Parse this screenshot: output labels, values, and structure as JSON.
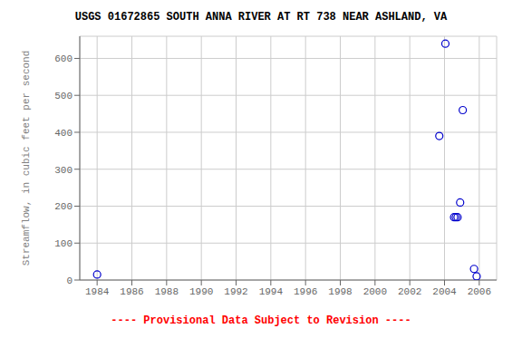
{
  "chart_data": {
    "type": "scatter",
    "title": "USGS 01672865 SOUTH ANNA RIVER AT RT 738 NEAR ASHLAND, VA",
    "y_label": "Streamflow, in cubic feet per second",
    "annotations": [
      {
        "text": "---- Provisional Data Subject to Revision ----",
        "color": "#ff0000"
      }
    ],
    "x": [
      1984.0,
      2003.7,
      2004.05,
      2004.55,
      2004.65,
      2004.75,
      2004.9,
      2005.05,
      2005.7,
      2005.85
    ],
    "values": [
      15,
      390,
      640,
      170,
      170,
      170,
      210,
      460,
      30,
      10
    ],
    "color": "#0000cc",
    "marker": "open_circle",
    "xlim": [
      1983,
      2007
    ],
    "xticks": [
      1984,
      1986,
      1988,
      1990,
      1992,
      1994,
      1996,
      1998,
      2000,
      2002,
      2004,
      2006
    ],
    "ylim": [
      0,
      660
    ],
    "yticks": [
      0,
      100,
      200,
      300,
      400,
      500,
      600
    ],
    "grid": true
  }
}
